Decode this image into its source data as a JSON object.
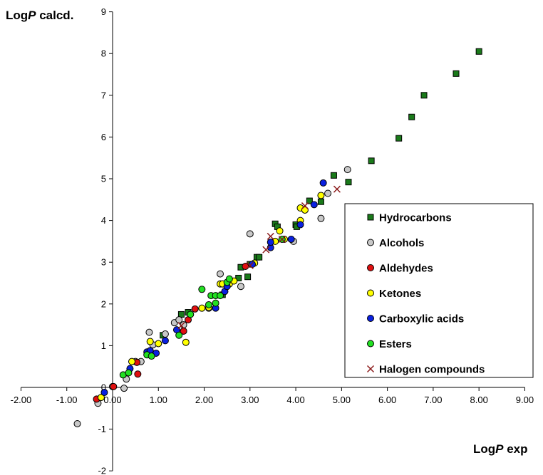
{
  "chart_data": {
    "type": "scatter",
    "title": "",
    "ylabel": {
      "prefix": "Log",
      "italic": "P",
      "suffix": " calcd."
    },
    "xlabel": {
      "prefix": "Log",
      "italic": "P",
      "suffix": " exp"
    },
    "xlim": [
      -2,
      9
    ],
    "ylim": [
      -2,
      9
    ],
    "x_ticks": [
      "-2.00",
      "-1.00",
      "0.00",
      "1.00",
      "2.00",
      "3.00",
      "4.00",
      "5.00",
      "6.00",
      "7.00",
      "8.00",
      "9.00"
    ],
    "y_ticks": [
      "-2",
      "-1",
      "0",
      "1",
      "2",
      "3",
      "4",
      "5",
      "6",
      "7",
      "8",
      "9"
    ],
    "grid": false,
    "legend_position": "right",
    "series": [
      {
        "name": "Hydrocarbons",
        "marker": "square",
        "color": "#1a7a1a",
        "points": [
          [
            8.0,
            8.05
          ],
          [
            7.5,
            7.52
          ],
          [
            6.8,
            7.0
          ],
          [
            6.53,
            6.48
          ],
          [
            6.25,
            5.97
          ],
          [
            5.65,
            5.43
          ],
          [
            5.15,
            4.92
          ],
          [
            4.83,
            5.08
          ],
          [
            4.55,
            4.45
          ],
          [
            4.3,
            4.47
          ],
          [
            3.55,
            3.92
          ],
          [
            3.6,
            3.85
          ],
          [
            4.0,
            3.9
          ],
          [
            4.02,
            3.85
          ],
          [
            3.15,
            3.12
          ],
          [
            3.2,
            3.12
          ],
          [
            3.0,
            2.95
          ],
          [
            2.75,
            2.62
          ],
          [
            2.95,
            2.65
          ],
          [
            2.8,
            2.88
          ],
          [
            2.4,
            2.22
          ],
          [
            1.5,
            1.75
          ],
          [
            1.1,
            1.25
          ],
          [
            1.65,
            1.8
          ]
        ]
      },
      {
        "name": "Alcohols",
        "marker": "circle",
        "color": "#c8c8c8",
        "points": [
          [
            -0.77,
            -0.87
          ],
          [
            -0.32,
            -0.38
          ],
          [
            0.0,
            0.02
          ],
          [
            0.25,
            -0.02
          ],
          [
            0.3,
            0.2
          ],
          [
            0.5,
            0.62
          ],
          [
            0.62,
            0.62
          ],
          [
            0.88,
            1.02
          ],
          [
            0.8,
            1.32
          ],
          [
            1.15,
            1.28
          ],
          [
            1.35,
            1.55
          ],
          [
            1.45,
            1.62
          ],
          [
            1.55,
            1.35
          ],
          [
            1.55,
            1.5
          ],
          [
            2.1,
            1.9
          ],
          [
            2.35,
            2.72
          ],
          [
            2.8,
            2.42
          ],
          [
            3.0,
            3.68
          ],
          [
            3.95,
            3.5
          ],
          [
            4.55,
            4.05
          ],
          [
            4.7,
            4.65
          ],
          [
            5.13,
            5.22
          ]
        ]
      },
      {
        "name": "Aldehydes",
        "marker": "circle",
        "color": "#e01010",
        "points": [
          [
            -0.35,
            -0.28
          ],
          [
            0.02,
            0.02
          ],
          [
            0.55,
            0.32
          ],
          [
            0.53,
            0.6
          ],
          [
            1.55,
            1.35
          ],
          [
            1.65,
            1.62
          ],
          [
            1.8,
            1.88
          ],
          [
            2.9,
            2.9
          ]
        ]
      },
      {
        "name": "Ketones",
        "marker": "circle",
        "color": "#ffff00",
        "points": [
          [
            -0.25,
            -0.24
          ],
          [
            0.42,
            0.62
          ],
          [
            0.82,
            1.1
          ],
          [
            1.0,
            1.05
          ],
          [
            1.6,
            1.08
          ],
          [
            1.95,
            1.9
          ],
          [
            2.1,
            1.92
          ],
          [
            2.35,
            2.48
          ],
          [
            2.4,
            2.48
          ],
          [
            2.55,
            2.48
          ],
          [
            2.65,
            2.55
          ],
          [
            3.1,
            2.98
          ],
          [
            3.55,
            3.5
          ],
          [
            3.65,
            3.75
          ],
          [
            3.75,
            3.55
          ],
          [
            4.1,
            4.0
          ],
          [
            4.1,
            4.3
          ],
          [
            4.55,
            4.6
          ],
          [
            4.2,
            4.25
          ]
        ]
      },
      {
        "name": "Carboxylic acids",
        "marker": "circle",
        "color": "#0a20e0",
        "points": [
          [
            -0.18,
            -0.12
          ],
          [
            0.38,
            0.45
          ],
          [
            0.75,
            0.85
          ],
          [
            0.82,
            0.88
          ],
          [
            0.95,
            0.82
          ],
          [
            1.15,
            1.12
          ],
          [
            1.4,
            1.38
          ],
          [
            2.25,
            1.9
          ],
          [
            2.45,
            2.3
          ],
          [
            2.5,
            2.42
          ],
          [
            3.05,
            2.95
          ],
          [
            3.45,
            3.35
          ],
          [
            3.45,
            3.48
          ],
          [
            3.9,
            3.55
          ],
          [
            4.1,
            3.9
          ],
          [
            4.4,
            4.38
          ],
          [
            4.6,
            4.9
          ]
        ]
      },
      {
        "name": "Esters",
        "marker": "circle",
        "color": "#22e022",
        "points": [
          [
            0.23,
            0.3
          ],
          [
            0.35,
            0.35
          ],
          [
            0.75,
            0.78
          ],
          [
            0.85,
            0.75
          ],
          [
            1.45,
            1.25
          ],
          [
            1.7,
            1.75
          ],
          [
            1.95,
            2.35
          ],
          [
            2.1,
            1.98
          ],
          [
            2.15,
            2.2
          ],
          [
            2.25,
            2.2
          ],
          [
            2.25,
            2.02
          ],
          [
            2.35,
            2.2
          ],
          [
            2.5,
            2.52
          ],
          [
            2.55,
            2.6
          ],
          [
            3.7,
            3.55
          ]
        ]
      },
      {
        "name": "Halogen compounds",
        "marker": "x",
        "color": "#8b1a1a",
        "points": [
          [
            1.5,
            1.48
          ],
          [
            3.0,
            2.92
          ],
          [
            3.35,
            3.3
          ],
          [
            3.45,
            3.62
          ],
          [
            3.7,
            3.55
          ],
          [
            4.2,
            4.35
          ],
          [
            4.9,
            4.75
          ]
        ]
      }
    ]
  }
}
